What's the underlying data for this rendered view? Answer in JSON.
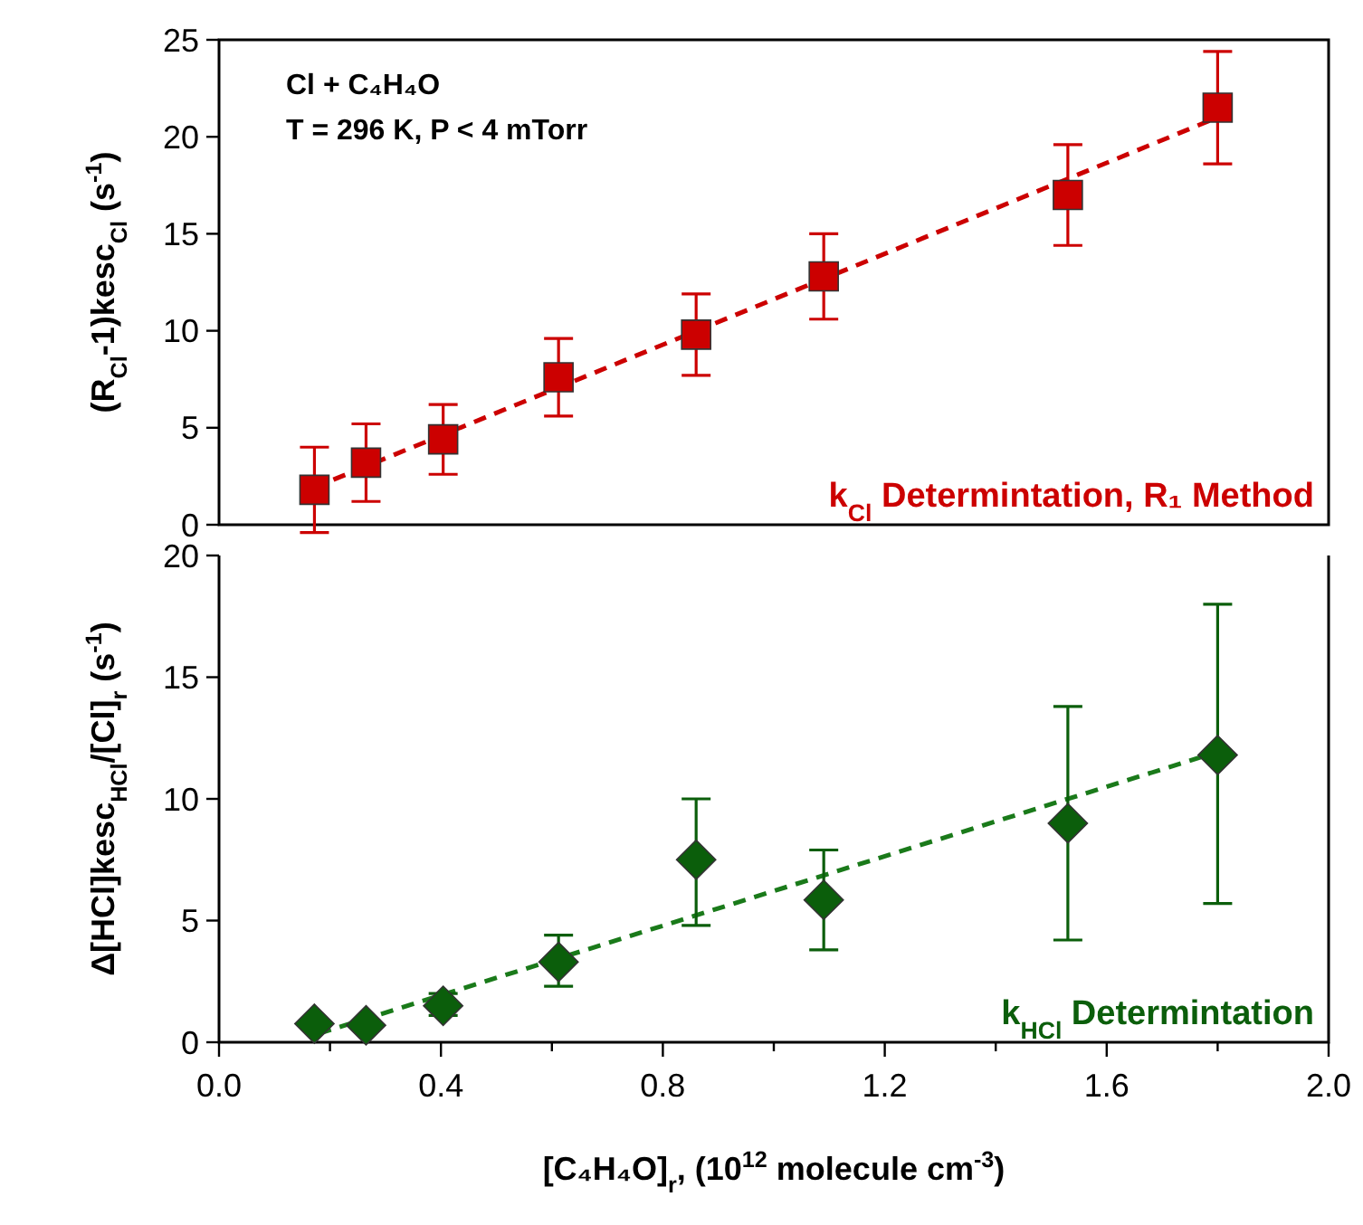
{
  "chart_data": [
    {
      "type": "scatter",
      "ylabel": "(R$_{Cl}$-1)kesc$_{Cl}$ (s$^{-1}$)",
      "annotations": [
        "Cl + C₄H₄O",
        "T = 296 K, P < 4 mTorr",
        "k$_{Cl}$ Determintation, R₁ Method"
      ],
      "xlim": [
        0,
        2
      ],
      "ylim": [
        0,
        25
      ],
      "yticks": [
        0,
        5,
        10,
        15,
        20,
        25
      ],
      "tick_labels": "y",
      "series": [
        {
          "type": "line",
          "color": "#cc0000",
          "line_style": "dashed",
          "marker": "none",
          "x": [
            0.17,
            1.8
          ],
          "values": [
            1.9,
            21.0
          ]
        },
        {
          "color": "#cc0000",
          "marker": "square",
          "x": [
            0.172,
            0.265,
            0.404,
            0.612,
            0.86,
            1.09,
            1.53,
            1.8
          ],
          "values": [
            1.8,
            3.2,
            4.4,
            7.6,
            9.8,
            12.8,
            17.0,
            21.5
          ],
          "errors": [
            2.2,
            2.0,
            1.8,
            2.0,
            2.1,
            2.2,
            2.6,
            2.9
          ]
        }
      ]
    },
    {
      "type": "scatter",
      "xlabel": "[C₄H₄O]$_{r}$, (10$^{12}$ molecule cm$^{-3}$)",
      "ylabel": "Δ[HCl]kesc$_{HCl}$/[Cl]$_{r}$ (s$^{-1}$)",
      "annotations": [
        "k$_{HCl}$ Determintation"
      ],
      "xlim": [
        0,
        2
      ],
      "xticks": [
        {
          "value": 0,
          "label": "0.0"
        },
        {
          "value": 0.2,
          "label": null
        },
        0.4,
        {
          "value": 0.6,
          "label": null
        },
        0.8,
        {
          "value": 1.0,
          "label": null
        },
        1.2,
        {
          "value": 1.4,
          "label": null
        },
        1.6,
        {
          "value": 1.8,
          "label": null
        },
        {
          "value": 2,
          "label": "2.0"
        }
      ],
      "ylim": [
        0,
        20
      ],
      "yticks": [
        0,
        5,
        10,
        15,
        20
      ],
      "series": [
        {
          "type": "line",
          "color": "#1a7a1a",
          "line_style": "dashed",
          "marker": "none",
          "x": [
            0.18,
            1.81
          ],
          "values": [
            0.36,
            12.0
          ]
        },
        {
          "color": "#0b5e0b",
          "marker": "diamond",
          "x": [
            0.172,
            0.265,
            0.404,
            0.612,
            0.86,
            1.09,
            1.53,
            1.8
          ],
          "values": [
            0.76,
            0.7,
            1.5,
            3.3,
            7.5,
            5.85,
            9.0,
            11.8
          ],
          "errors": [
            null,
            null,
            [
              1.1,
              2.0
            ],
            [
              2.3,
              4.4
            ],
            [
              4.8,
              10.0
            ],
            [
              3.8,
              7.9
            ],
            [
              4.2,
              13.8
            ],
            [
              5.7,
              18.0
            ]
          ]
        }
      ]
    }
  ]
}
